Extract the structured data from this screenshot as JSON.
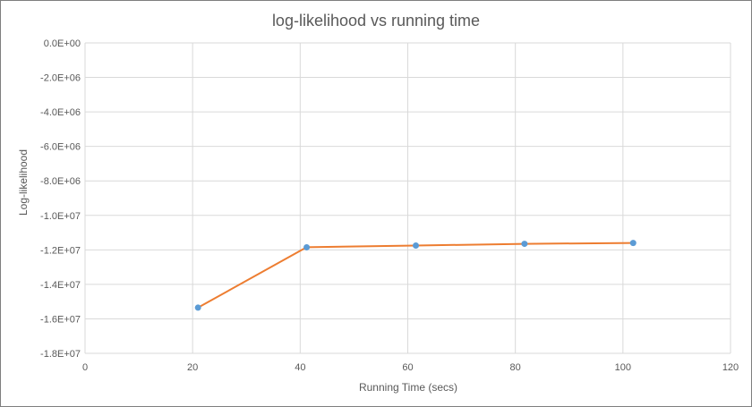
{
  "chart_data": {
    "type": "line",
    "title": "log-likelihood vs running time",
    "xlabel": "Running Time (secs)",
    "ylabel": "Log-likelihood",
    "xlim": [
      0,
      120
    ],
    "ylim": [
      -18000000,
      0
    ],
    "x_ticks": [
      0,
      20,
      40,
      60,
      80,
      100,
      120
    ],
    "x_tick_labels": [
      "0",
      "20",
      "40",
      "60",
      "80",
      "100",
      "120"
    ],
    "y_ticks": [
      0,
      -2000000,
      -4000000,
      -6000000,
      -8000000,
      -10000000,
      -12000000,
      -14000000,
      -16000000,
      -18000000
    ],
    "y_tick_labels": [
      "0.0E+00",
      "-2.0E+06",
      "-4.0E+06",
      "-6.0E+06",
      "-8.0E+06",
      "-1.0E+07",
      "-1.2E+07",
      "-1.4E+07",
      "-1.6E+07",
      "-1.8E+07"
    ],
    "grid": true,
    "series": [
      {
        "name": "log-likelihood",
        "line_color": "#ed7d31",
        "marker_color": "#5b9bd5",
        "x": [
          21,
          41.2,
          61.5,
          81.7,
          101.9
        ],
        "y": [
          -15350000,
          -11850000,
          -11750000,
          -11650000,
          -11600000
        ]
      }
    ]
  }
}
